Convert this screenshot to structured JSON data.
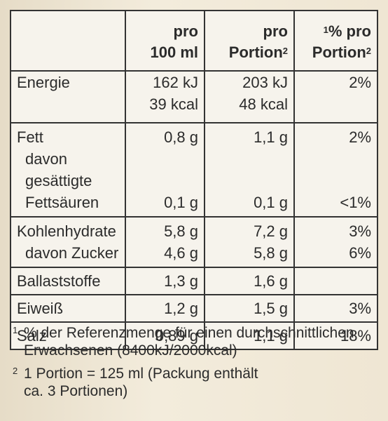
{
  "header": {
    "col_per100_line1": "pro",
    "col_per100_line2": "100 ml",
    "col_portion_line1": "pro",
    "col_portion_line2": "Portion",
    "col_portion_sup": "2",
    "col_pct_sup": "1",
    "col_pct_line1_text": "% pro",
    "col_pct_line2": "Portion",
    "col_pct_line2_sup": "2"
  },
  "rows": {
    "energie": {
      "name": "Energie",
      "per100_kj": "162 kJ",
      "per100_kcal": "39 kcal",
      "portion_kj": "203 kJ",
      "portion_kcal": "48 kcal",
      "pct": "2%"
    },
    "fett": {
      "name": "Fett",
      "per100": "0,8 g",
      "portion": "1,1 g",
      "pct": "2%"
    },
    "fettsaeuren": {
      "name_line1": "davon gesättigte",
      "name_line2": "Fettsäuren",
      "per100": "0,1 g",
      "portion": "0,1 g",
      "pct": "<1%"
    },
    "kohlenhydrate": {
      "name": "Kohlenhydrate",
      "per100": "5,8 g",
      "portion": "7,2 g",
      "pct": "3%"
    },
    "zucker": {
      "name": "davon Zucker",
      "per100": "4,6 g",
      "portion": "5,8 g",
      "pct": "6%"
    },
    "ballaststoffe": {
      "name": "Ballaststoffe",
      "per100": "1,3 g",
      "portion": "1,6 g",
      "pct": ""
    },
    "eiweiss": {
      "name": "Eiweiß",
      "per100": "1,2 g",
      "portion": "1,5 g",
      "pct": "3%"
    },
    "salz": {
      "name": "Salz",
      "per100": "0,89 g",
      "portion": "1,1 g",
      "pct": "18%"
    }
  },
  "footnotes": {
    "fn1_mark": "1",
    "fn1_text_line1": "% der Referenzmenge für einen durchschnittlichen",
    "fn1_text_line2": "Erwachsenen (8400kJ/2000kcal)",
    "fn2_mark": "2",
    "fn2_text_line1": "1 Portion = 125 ml (Packung enthält",
    "fn2_text_line2": "ca. 3 Portionen)"
  }
}
